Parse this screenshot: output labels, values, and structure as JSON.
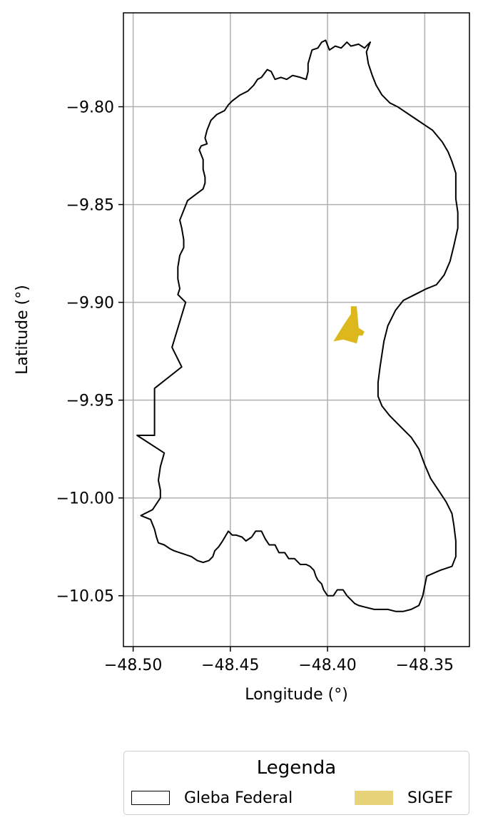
{
  "chart_data": {
    "type": "map",
    "xlabel": "Longitude (°)",
    "ylabel": "Latitude (°)",
    "xlim": [
      -48.505,
      -48.327
    ],
    "ylim": [
      -10.076,
      -9.752
    ],
    "xticks": [
      -48.5,
      -48.45,
      -48.4,
      -48.35
    ],
    "xtick_labels": [
      "−48.50",
      "−48.45",
      "−48.40",
      "−48.35"
    ],
    "yticks": [
      -9.8,
      -9.85,
      -9.9,
      -9.95,
      -10.0,
      -10.05
    ],
    "ytick_labels": [
      "−9.80",
      "−9.85",
      "−9.90",
      "−9.95",
      "−10.00",
      "−10.05"
    ],
    "grid": true,
    "legend": {
      "title": "Legenda",
      "position": "bottom-center",
      "entries": [
        {
          "label": "Gleba Federal",
          "style": "outline",
          "color": "#000000"
        },
        {
          "label": "SIGEF",
          "style": "fill",
          "color": "#e8d37a"
        }
      ]
    },
    "layers": [
      {
        "name": "Gleba Federal",
        "kind": "polygon-outline",
        "stroke": "#000000",
        "coords": [
          [
            -48.378,
            -9.767
          ],
          [
            -48.381,
            -9.77
          ],
          [
            -48.384,
            -9.768
          ],
          [
            -48.388,
            -9.769
          ],
          [
            -48.39,
            -9.767
          ],
          [
            -48.393,
            -9.77
          ],
          [
            -48.396,
            -9.769
          ],
          [
            -48.399,
            -9.771
          ],
          [
            -48.401,
            -9.766
          ],
          [
            -48.403,
            -9.767
          ],
          [
            -48.405,
            -9.77
          ],
          [
            -48.408,
            -9.771
          ],
          [
            -48.41,
            -9.778
          ],
          [
            -48.41,
            -9.782
          ],
          [
            -48.411,
            -9.786
          ],
          [
            -48.414,
            -9.785
          ],
          [
            -48.418,
            -9.784
          ],
          [
            -48.421,
            -9.786
          ],
          [
            -48.424,
            -9.785
          ],
          [
            -48.427,
            -9.786
          ],
          [
            -48.429,
            -9.782
          ],
          [
            -48.431,
            -9.781
          ],
          [
            -48.434,
            -9.785
          ],
          [
            -48.436,
            -9.786
          ],
          [
            -48.438,
            -9.789
          ],
          [
            -48.441,
            -9.792
          ],
          [
            -48.445,
            -9.794
          ],
          [
            -48.449,
            -9.797
          ],
          [
            -48.451,
            -9.799
          ],
          [
            -48.453,
            -9.802
          ],
          [
            -48.457,
            -9.804
          ],
          [
            -48.46,
            -9.807
          ],
          [
            -48.462,
            -9.812
          ],
          [
            -48.463,
            -9.816
          ],
          [
            -48.462,
            -9.819
          ],
          [
            -48.465,
            -9.82
          ],
          [
            -48.466,
            -9.822
          ],
          [
            -48.464,
            -9.827
          ],
          [
            -48.464,
            -9.832
          ],
          [
            -48.463,
            -9.836
          ],
          [
            -48.463,
            -9.839
          ],
          [
            -48.464,
            -9.842
          ],
          [
            -48.472,
            -9.848
          ],
          [
            -48.476,
            -9.858
          ],
          [
            -48.475,
            -9.862
          ],
          [
            -48.474,
            -9.868
          ],
          [
            -48.474,
            -9.872
          ],
          [
            -48.476,
            -9.876
          ],
          [
            -48.477,
            -9.882
          ],
          [
            -48.477,
            -9.888
          ],
          [
            -48.476,
            -9.893
          ],
          [
            -48.477,
            -9.896
          ],
          [
            -48.473,
            -9.9
          ],
          [
            -48.48,
            -9.923
          ],
          [
            -48.475,
            -9.933
          ],
          [
            -48.489,
            -9.944
          ],
          [
            -48.489,
            -9.968
          ],
          [
            -48.498,
            -9.968
          ],
          [
            -48.484,
            -9.977
          ],
          [
            -48.486,
            -9.984
          ],
          [
            -48.487,
            -9.991
          ],
          [
            -48.486,
            -9.996
          ],
          [
            -48.486,
            -10.0
          ],
          [
            -48.488,
            -10.003
          ],
          [
            -48.49,
            -10.006
          ],
          [
            -48.496,
            -10.009
          ],
          [
            -48.491,
            -10.011
          ],
          [
            -48.489,
            -10.016
          ],
          [
            -48.488,
            -10.02
          ],
          [
            -48.487,
            -10.023
          ],
          [
            -48.484,
            -10.024
          ],
          [
            -48.481,
            -10.026
          ],
          [
            -48.479,
            -10.027
          ],
          [
            -48.476,
            -10.028
          ],
          [
            -48.473,
            -10.029
          ],
          [
            -48.47,
            -10.03
          ],
          [
            -48.467,
            -10.032
          ],
          [
            -48.464,
            -10.033
          ],
          [
            -48.461,
            -10.032
          ],
          [
            -48.459,
            -10.03
          ],
          [
            -48.458,
            -10.027
          ],
          [
            -48.456,
            -10.025
          ],
          [
            -48.454,
            -10.022
          ],
          [
            -48.451,
            -10.017
          ],
          [
            -48.449,
            -10.019
          ],
          [
            -48.447,
            -10.019
          ],
          [
            -48.444,
            -10.02
          ],
          [
            -48.442,
            -10.022
          ],
          [
            -48.439,
            -10.02
          ],
          [
            -48.437,
            -10.017
          ],
          [
            -48.434,
            -10.017
          ],
          [
            -48.432,
            -10.021
          ],
          [
            -48.43,
            -10.024
          ],
          [
            -48.427,
            -10.024
          ],
          [
            -48.425,
            -10.028
          ],
          [
            -48.422,
            -10.028
          ],
          [
            -48.42,
            -10.031
          ],
          [
            -48.417,
            -10.031
          ],
          [
            -48.414,
            -10.034
          ],
          [
            -48.411,
            -10.034
          ],
          [
            -48.409,
            -10.035
          ],
          [
            -48.407,
            -10.037
          ],
          [
            -48.406,
            -10.04
          ],
          [
            -48.405,
            -10.042
          ],
          [
            -48.403,
            -10.044
          ],
          [
            -48.402,
            -10.047
          ],
          [
            -48.4,
            -10.05
          ],
          [
            -48.397,
            -10.05
          ],
          [
            -48.395,
            -10.047
          ],
          [
            -48.392,
            -10.047
          ],
          [
            -48.39,
            -10.05
          ],
          [
            -48.388,
            -10.052
          ],
          [
            -48.386,
            -10.054
          ],
          [
            -48.384,
            -10.055
          ],
          [
            -48.38,
            -10.056
          ],
          [
            -48.376,
            -10.057
          ],
          [
            -48.372,
            -10.057
          ],
          [
            -48.369,
            -10.057
          ],
          [
            -48.365,
            -10.058
          ],
          [
            -48.361,
            -10.058
          ],
          [
            -48.357,
            -10.057
          ],
          [
            -48.353,
            -10.055
          ],
          [
            -48.351,
            -10.05
          ],
          [
            -48.35,
            -10.045
          ],
          [
            -48.349,
            -10.04
          ],
          [
            -48.342,
            -10.037
          ],
          [
            -48.336,
            -10.035
          ],
          [
            -48.334,
            -10.03
          ],
          [
            -48.334,
            -10.022
          ],
          [
            -48.335,
            -10.014
          ],
          [
            -48.336,
            -10.008
          ],
          [
            -48.339,
            -10.002
          ],
          [
            -48.343,
            -9.996
          ],
          [
            -48.347,
            -9.99
          ],
          [
            -48.35,
            -9.983
          ],
          [
            -48.353,
            -9.975
          ],
          [
            -48.357,
            -9.969
          ],
          [
            -48.362,
            -9.964
          ],
          [
            -48.368,
            -9.958
          ],
          [
            -48.372,
            -9.953
          ],
          [
            -48.374,
            -9.948
          ],
          [
            -48.374,
            -9.941
          ],
          [
            -48.373,
            -9.933
          ],
          [
            -48.371,
            -9.92
          ],
          [
            -48.369,
            -9.912
          ],
          [
            -48.365,
            -9.904
          ],
          [
            -48.361,
            -9.899
          ],
          [
            -48.355,
            -9.896
          ],
          [
            -48.349,
            -9.893
          ],
          [
            -48.344,
            -9.891
          ],
          [
            -48.34,
            -9.886
          ],
          [
            -48.337,
            -9.879
          ],
          [
            -48.335,
            -9.871
          ],
          [
            -48.333,
            -9.862
          ],
          [
            -48.333,
            -9.854
          ],
          [
            -48.334,
            -9.847
          ],
          [
            -48.334,
            -9.84
          ],
          [
            -48.334,
            -9.834
          ],
          [
            -48.336,
            -9.828
          ],
          [
            -48.338,
            -9.823
          ],
          [
            -48.341,
            -9.818
          ],
          [
            -48.346,
            -9.812
          ],
          [
            -48.352,
            -9.808
          ],
          [
            -48.358,
            -9.804
          ],
          [
            -48.364,
            -9.8
          ],
          [
            -48.368,
            -9.798
          ],
          [
            -48.372,
            -9.794
          ],
          [
            -48.375,
            -9.789
          ],
          [
            -48.377,
            -9.784
          ],
          [
            -48.379,
            -9.778
          ],
          [
            -48.38,
            -9.772
          ],
          [
            -48.378,
            -9.767
          ]
        ]
      },
      {
        "name": "SIGEF",
        "kind": "polygon-fill",
        "fill": "#dcb81c",
        "coords": [
          [
            -48.388,
            -9.902
          ],
          [
            -48.385,
            -9.902
          ],
          [
            -48.384,
            -9.913
          ],
          [
            -48.381,
            -9.915
          ],
          [
            -48.382,
            -9.917
          ],
          [
            -48.384,
            -9.917
          ],
          [
            -48.385,
            -9.921
          ],
          [
            -48.392,
            -9.919
          ],
          [
            -48.397,
            -9.92
          ],
          [
            -48.392,
            -9.912
          ],
          [
            -48.388,
            -9.906
          ]
        ]
      }
    ]
  }
}
